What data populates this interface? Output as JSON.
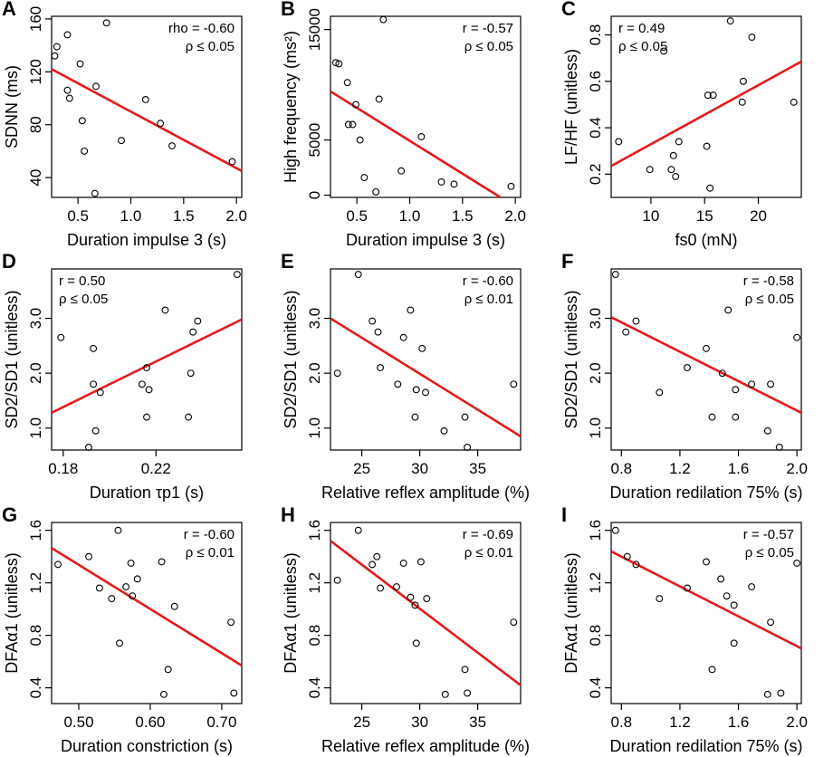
{
  "colors": {
    "fit_line": "#e41a1c",
    "points": "#000000"
  },
  "chart_data": [
    {
      "id": "A",
      "type": "scatter",
      "xlabel": "Duration impulse 3 (s)",
      "ylabel": "SDNN (ms)",
      "stat_lines": [
        "rho = -0.60",
        "ρ ≤ 0.05"
      ],
      "xlim": [
        0.25,
        2.05
      ],
      "ylim": [
        25,
        162
      ],
      "xticks": [
        0.5,
        1.0,
        1.5,
        2.0
      ],
      "xtick_labels": [
        "0.5",
        "1.0",
        "1.5",
        "2.0"
      ],
      "yticks": [
        40,
        80,
        120,
        160
      ],
      "ytick_labels": [
        "40",
        "80",
        "120",
        "160"
      ],
      "x": [
        0.28,
        0.3,
        0.4,
        0.4,
        0.42,
        0.52,
        0.54,
        0.56,
        0.66,
        0.67,
        0.77,
        0.91,
        1.14,
        1.28,
        1.39,
        1.96
      ],
      "y": [
        132,
        139,
        148,
        106,
        100,
        126,
        83,
        60,
        28,
        109,
        157,
        68,
        99,
        81,
        64,
        52
      ],
      "fit": {
        "x1": 0.25,
        "y1": 122,
        "x2": 2.05,
        "y2": 45
      }
    },
    {
      "id": "B",
      "type": "scatter",
      "xlabel": "Duration impulse 3 (s)",
      "ylabel": "High frequency (ms²)",
      "stat_lines": [
        "r = -0.57",
        "ρ ≤ 0.05"
      ],
      "xlim": [
        0.25,
        2.05
      ],
      "ylim": [
        -200,
        16200
      ],
      "xticks": [
        0.5,
        1.0,
        1.5,
        2.0
      ],
      "xtick_labels": [
        "0.5",
        "1.0",
        "1.5",
        "2.0"
      ],
      "yticks": [
        0,
        5000,
        15000
      ],
      "ytick_labels": [
        "0",
        "5000",
        "15000"
      ],
      "x": [
        0.3,
        0.33,
        0.41,
        0.42,
        0.46,
        0.49,
        0.53,
        0.57,
        0.68,
        0.71,
        0.75,
        0.92,
        1.11,
        1.3,
        1.42,
        1.96
      ],
      "y": [
        12000,
        11900,
        10200,
        6400,
        6400,
        8200,
        5000,
        1600,
        300,
        8700,
        15900,
        2200,
        5300,
        1200,
        1000,
        800
      ],
      "fit": {
        "x1": 0.25,
        "y1": 9400,
        "x2": 1.86,
        "y2": -200
      }
    },
    {
      "id": "C",
      "type": "scatter",
      "xlabel": "fs0 (mN)",
      "ylabel": "LF/HF (unitless)",
      "stat_lines": [
        "r = 0.49",
        "ρ ≤ 0.05"
      ],
      "xlim": [
        6.3,
        24.0
      ],
      "ylim": [
        0.1,
        0.88
      ],
      "xticks": [
        10,
        15,
        20
      ],
      "xtick_labels": [
        "10",
        "15",
        "20"
      ],
      "yticks": [
        0.2,
        0.4,
        0.6,
        0.8
      ],
      "ytick_labels": [
        "0.2",
        "0.4",
        "0.6",
        "0.8"
      ],
      "x": [
        7.0,
        9.9,
        11.2,
        11.9,
        12.1,
        12.3,
        12.6,
        15.2,
        15.3,
        15.5,
        15.8,
        17.4,
        18.5,
        18.6,
        19.4,
        23.3
      ],
      "y": [
        0.34,
        0.22,
        0.73,
        0.22,
        0.28,
        0.19,
        0.34,
        0.32,
        0.54,
        0.14,
        0.54,
        0.86,
        0.51,
        0.6,
        0.79,
        0.51
      ],
      "fit": {
        "x1": 6.3,
        "y1": 0.235,
        "x2": 24.0,
        "y2": 0.685
      }
    },
    {
      "id": "D",
      "type": "scatter",
      "xlabel": "Duration τp1 (s)",
      "ylabel": "SD2/SD1 (unitless)",
      "stat_lines": [
        "r = 0.50",
        "ρ ≤ 0.05"
      ],
      "xlim": [
        0.175,
        0.257
      ],
      "ylim": [
        0.6,
        3.9
      ],
      "xticks": [
        0.18,
        0.22
      ],
      "xtick_labels": [
        "0.18",
        "0.22"
      ],
      "yticks": [
        1.0,
        2.0,
        3.0
      ],
      "ytick_labels": [
        "1.0",
        "2.0",
        "3.0"
      ],
      "x": [
        0.179,
        0.191,
        0.193,
        0.193,
        0.194,
        0.196,
        0.214,
        0.216,
        0.216,
        0.217,
        0.224,
        0.234,
        0.235,
        0.236,
        0.238,
        0.255
      ],
      "y": [
        2.65,
        0.65,
        2.45,
        1.8,
        0.95,
        1.65,
        1.8,
        1.2,
        2.1,
        1.7,
        3.15,
        1.2,
        2.0,
        2.75,
        2.95,
        3.8
      ],
      "fit": {
        "x1": 0.175,
        "y1": 1.28,
        "x2": 0.257,
        "y2": 2.98
      }
    },
    {
      "id": "E",
      "type": "scatter",
      "xlabel": "Relative reflex amplitude (%)",
      "ylabel": "SD2/SD1 (unitless)",
      "stat_lines": [
        "r = -0.60",
        "ρ ≤ 0.01"
      ],
      "xlim": [
        22.3,
        38.7
      ],
      "ylim": [
        0.6,
        3.9
      ],
      "xticks": [
        25,
        30,
        35
      ],
      "xtick_labels": [
        "25",
        "30",
        "35"
      ],
      "yticks": [
        1.0,
        2.0,
        3.0
      ],
      "ytick_labels": [
        "1.0",
        "2.0",
        "3.0"
      ],
      "x": [
        22.9,
        24.7,
        25.9,
        26.4,
        26.6,
        28.1,
        28.6,
        29.2,
        29.6,
        29.7,
        30.2,
        30.5,
        32.1,
        33.9,
        34.1,
        38.1
      ],
      "y": [
        2.0,
        3.8,
        2.95,
        2.75,
        2.1,
        1.8,
        2.65,
        3.15,
        1.2,
        1.7,
        2.45,
        1.65,
        0.95,
        1.2,
        0.65,
        1.8
      ],
      "fit": {
        "x1": 22.3,
        "y1": 3.0,
        "x2": 38.7,
        "y2": 0.85
      }
    },
    {
      "id": "F",
      "type": "scatter",
      "xlabel": "Duration redilation 75% (s)",
      "ylabel": "SD2/SD1 (unitless)",
      "stat_lines": [
        "r = -0.58",
        "ρ ≤ 0.05"
      ],
      "xlim": [
        0.73,
        2.03
      ],
      "ylim": [
        0.6,
        3.9
      ],
      "xticks": [
        0.8,
        1.2,
        1.6,
        2.0
      ],
      "xtick_labels": [
        "0.8",
        "1.2",
        "1.6",
        "2.0"
      ],
      "yticks": [
        1.0,
        2.0,
        3.0
      ],
      "ytick_labels": [
        "1.0",
        "2.0",
        "3.0"
      ],
      "x": [
        0.76,
        0.83,
        0.9,
        1.06,
        1.25,
        1.38,
        1.42,
        1.49,
        1.53,
        1.58,
        1.58,
        1.69,
        1.8,
        1.82,
        1.88,
        2.0
      ],
      "y": [
        3.8,
        2.75,
        2.95,
        1.65,
        2.1,
        2.45,
        1.2,
        2.0,
        3.15,
        1.2,
        1.7,
        1.8,
        0.95,
        1.8,
        0.65,
        2.65
      ],
      "fit": {
        "x1": 0.73,
        "y1": 3.02,
        "x2": 2.03,
        "y2": 1.28
      }
    },
    {
      "id": "G",
      "type": "scatter",
      "xlabel": "Duration constriction (s)",
      "ylabel": "DFAα1 (unitless)",
      "stat_lines": [
        "r = -0.60",
        "ρ ≤ 0.01"
      ],
      "xlim": [
        0.462,
        0.728
      ],
      "ylim": [
        0.28,
        1.66
      ],
      "xticks": [
        0.5,
        0.6,
        0.7
      ],
      "xtick_labels": [
        "0.50",
        "0.60",
        "0.70"
      ],
      "yticks": [
        0.4,
        0.8,
        1.2,
        1.6
      ],
      "ytick_labels": [
        "0.4",
        "0.8",
        "1.2",
        "1.6"
      ],
      "x": [
        0.471,
        0.514,
        0.529,
        0.546,
        0.555,
        0.557,
        0.566,
        0.573,
        0.575,
        0.582,
        0.616,
        0.619,
        0.625,
        0.634,
        0.713,
        0.717
      ],
      "y": [
        1.34,
        1.4,
        1.16,
        1.08,
        1.6,
        0.74,
        1.17,
        1.35,
        1.1,
        1.23,
        1.36,
        0.35,
        0.54,
        1.02,
        0.9,
        0.36
      ],
      "fit": {
        "x1": 0.462,
        "y1": 1.465,
        "x2": 0.728,
        "y2": 0.57
      }
    },
    {
      "id": "H",
      "type": "scatter",
      "xlabel": "Relative reflex amplitude (%)",
      "ylabel": "DFAα1 (unitless)",
      "stat_lines": [
        "r = -0.69",
        "ρ ≤ 0.01"
      ],
      "xlim": [
        22.3,
        38.7
      ],
      "ylim": [
        0.28,
        1.66
      ],
      "xticks": [
        25,
        30,
        35
      ],
      "xtick_labels": [
        "25",
        "30",
        "35"
      ],
      "yticks": [
        0.4,
        0.8,
        1.2,
        1.6
      ],
      "ytick_labels": [
        "0.4",
        "0.8",
        "1.2",
        "1.6"
      ],
      "x": [
        22.9,
        24.7,
        25.9,
        26.3,
        26.6,
        28.0,
        28.6,
        29.2,
        29.6,
        29.7,
        30.1,
        30.6,
        32.2,
        33.9,
        34.1,
        38.1
      ],
      "y": [
        1.22,
        1.6,
        1.34,
        1.4,
        1.16,
        1.17,
        1.35,
        1.09,
        1.03,
        0.74,
        1.36,
        1.08,
        0.35,
        0.54,
        0.36,
        0.9
      ],
      "fit": {
        "x1": 22.3,
        "y1": 1.52,
        "x2": 38.7,
        "y2": 0.42
      }
    },
    {
      "id": "I",
      "type": "scatter",
      "xlabel": "Duration redilation 75% (s)",
      "ylabel": "DFAα1 (unitless)",
      "stat_lines": [
        "r = -0.57",
        "ρ ≤ 0.05"
      ],
      "xlim": [
        0.73,
        2.03
      ],
      "ylim": [
        0.28,
        1.66
      ],
      "xticks": [
        0.8,
        1.2,
        1.6,
        2.0
      ],
      "xtick_labels": [
        "0.8",
        "1.2",
        "1.6",
        "2.0"
      ],
      "yticks": [
        0.4,
        0.8,
        1.2,
        1.6
      ],
      "ytick_labels": [
        "0.4",
        "0.8",
        "1.2",
        "1.6"
      ],
      "x": [
        0.76,
        0.84,
        0.9,
        1.06,
        1.25,
        1.38,
        1.42,
        1.48,
        1.52,
        1.57,
        1.57,
        1.69,
        1.8,
        1.82,
        1.89,
        2.0
      ],
      "y": [
        1.6,
        1.4,
        1.34,
        1.08,
        1.16,
        1.36,
        0.54,
        1.23,
        1.1,
        0.74,
        1.03,
        1.17,
        0.35,
        0.9,
        0.36,
        1.35
      ],
      "fit": {
        "x1": 0.73,
        "y1": 1.44,
        "x2": 2.03,
        "y2": 0.7
      }
    }
  ]
}
